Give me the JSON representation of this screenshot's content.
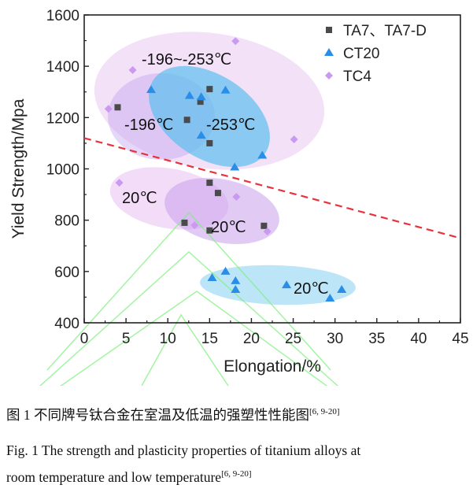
{
  "chart_data": {
    "type": "scatter",
    "xlabel": "Elongation/%",
    "ylabel": "Yield Strength/Mpa",
    "xlim": [
      0,
      45
    ],
    "ylim": [
      400,
      1600
    ],
    "xticks": [
      0,
      5,
      10,
      15,
      20,
      25,
      30,
      35,
      40,
      45
    ],
    "yticks": [
      400,
      600,
      800,
      1000,
      1200,
      1400,
      1600
    ],
    "legend_position": "top-right",
    "series": [
      {
        "name": "TA7、TA7-D",
        "marker": "square",
        "color": "#4a4a4a",
        "points": [
          [
            4,
            1240
          ],
          [
            15,
            1311
          ],
          [
            13.9,
            1262
          ],
          [
            12.3,
            1191
          ],
          [
            15,
            1100
          ],
          [
            15,
            946
          ],
          [
            16,
            906
          ],
          [
            12,
            790
          ],
          [
            15,
            760
          ],
          [
            21.5,
            778
          ]
        ]
      },
      {
        "name": "CT20",
        "marker": "triangle",
        "color": "#2a8ee8",
        "points": [
          [
            8,
            1308
          ],
          [
            12.6,
            1285
          ],
          [
            14,
            1280
          ],
          [
            16.9,
            1306
          ],
          [
            14,
            1130
          ],
          [
            18,
            1006
          ],
          [
            21.3,
            1052
          ],
          [
            15.3,
            575
          ],
          [
            16.9,
            600
          ],
          [
            18.1,
            563
          ],
          [
            18.1,
            529
          ],
          [
            24.2,
            547
          ],
          [
            29.4,
            495
          ],
          [
            30.8,
            529
          ]
        ]
      },
      {
        "name": "TC4",
        "marker": "diamond",
        "color": "#c99af0",
        "points": [
          [
            18.1,
            1498
          ],
          [
            5.8,
            1385
          ],
          [
            2.9,
            1234
          ],
          [
            25.1,
            1115
          ],
          [
            4.2,
            946
          ],
          [
            18.2,
            891
          ],
          [
            13.2,
            780
          ],
          [
            21.9,
            756
          ]
        ]
      }
    ],
    "reference_line": {
      "style": "dashed",
      "color": "#e8323c",
      "points": [
        [
          0,
          1120
        ],
        [
          45,
          730
        ]
      ]
    },
    "annotations": [
      "-196~-253℃",
      "-196℃",
      "-253℃",
      "20℃",
      "20℃",
      "20℃"
    ]
  },
  "caption": {
    "cn": "图 1 不同牌号钛合金在室温及低温的强塑性性能图",
    "cn_ref": "[6, 9-20]",
    "en1": "Fig. 1 The strength and plasticity properties of titanium alloys at",
    "en2": "room temperature and low temperature",
    "en_ref": "[6, 9-20]"
  }
}
